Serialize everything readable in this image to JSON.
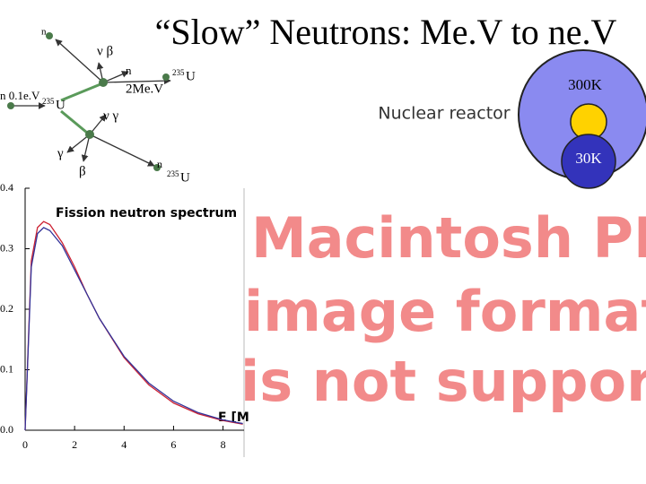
{
  "title": "“Slow” Neutrons: Me.V to ne.V",
  "diagram": {
    "labels": [
      {
        "text": "n"
      },
      {
        "text": "ν β"
      },
      {
        "text": "n"
      },
      {
        "text": "2Me.V"
      },
      {
        "text": "n 0.1e.V"
      },
      {
        "text": "ν γ"
      },
      {
        "text": "γ"
      },
      {
        "text": "β"
      },
      {
        "text": "n"
      }
    ],
    "nuclei": [
      {
        "mass": "235",
        "symbol": "U"
      },
      {
        "mass": "235",
        "symbol": "U"
      },
      {
        "mass": "235",
        "symbol": "U"
      }
    ]
  },
  "reactor": {
    "label": "Nuclear reactor",
    "outer": "300K",
    "inner": "30K"
  },
  "placeholder": {
    "lines": [
      "Macintosh PICT",
      "image format",
      "is not supported"
    ]
  },
  "chart_data": {
    "type": "line",
    "title": "Fission neutron spectrum",
    "x_label": "E [M",
    "x": [
      0,
      0.25,
      0.5,
      0.75,
      1,
      1.5,
      2,
      2.5,
      3,
      4,
      5,
      6,
      7,
      8,
      8.8
    ],
    "series": [
      {
        "color": "#cc2233",
        "values": [
          0,
          0.28,
          0.335,
          0.345,
          0.34,
          0.31,
          0.27,
          0.225,
          0.185,
          0.12,
          0.075,
          0.045,
          0.027,
          0.016,
          0.01
        ]
      },
      {
        "color": "#333399",
        "values": [
          0,
          0.27,
          0.325,
          0.335,
          0.33,
          0.305,
          0.265,
          0.225,
          0.185,
          0.122,
          0.078,
          0.048,
          0.029,
          0.017,
          0.011
        ]
      }
    ],
    "xlim": [
      0,
      8.85
    ],
    "ylim": [
      0,
      0.4
    ],
    "xticks": [
      0,
      2,
      4,
      6,
      8
    ],
    "yticks": [
      {
        "value": 0,
        "label": "0.0"
      },
      0.1,
      0.2,
      0.3,
      0.4
    ]
  }
}
